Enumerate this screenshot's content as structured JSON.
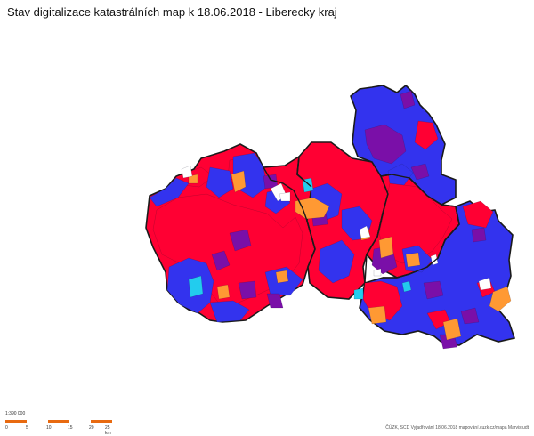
{
  "header": {
    "title": "Stav digitalizace katastrálních map k 18.06.2018 - Liberecky kraj"
  },
  "colors": {
    "red": "#ff0033",
    "blue": "#3333ee",
    "purple": "#7a0fa8",
    "orange": "#ff9933",
    "cyan": "#22ccee",
    "white": "#ffffff",
    "boundary": "#1a1a1a",
    "scale_bar": "#e86a10"
  },
  "scale": {
    "ratio": "1:390 000",
    "ticks": [
      "0",
      "5",
      "10",
      "15",
      "20",
      "25 km"
    ]
  },
  "footer": {
    "credit": "ČÚZK, SCD Vyjadřování 18.06.2018 mapování.cuzk.cz/mapa Marvistudt"
  }
}
